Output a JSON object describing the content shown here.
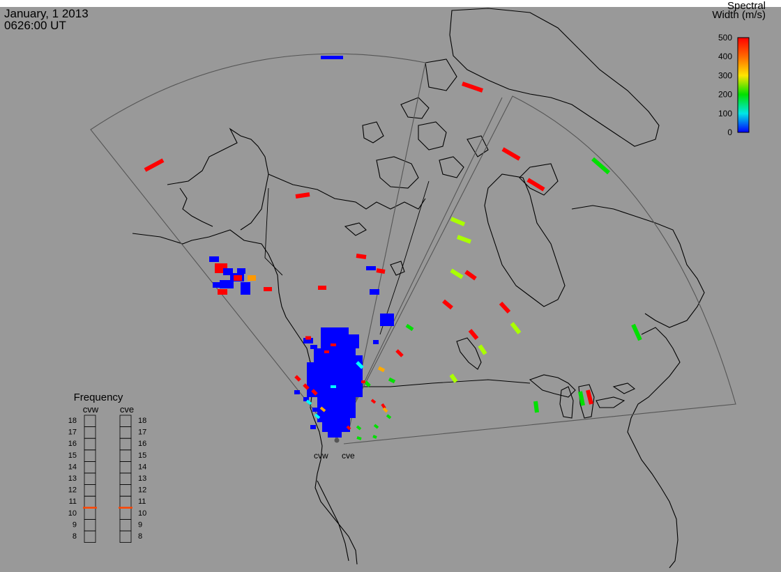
{
  "header": {
    "date": "January, 1 2013",
    "time": "0626:00 UT"
  },
  "colorbar": {
    "title_line1": "Spectral",
    "title_line2": "Width (m/s)",
    "ticks": [
      "500",
      "400",
      "300",
      "200",
      "100",
      "0"
    ],
    "colors": [
      "#ff0000",
      "#ff8000",
      "#ffff00",
      "#00e000",
      "#00ffff",
      "#0000ff"
    ]
  },
  "frequency_panel": {
    "title": "Frequency",
    "left_label": "cvw",
    "right_label": "cve",
    "scale": [
      "18",
      "17",
      "16",
      "15",
      "14",
      "13",
      "12",
      "11",
      "10",
      "9",
      "8"
    ],
    "cvw_frequency_mhz": 10.5,
    "cve_frequency_mhz": 10.5,
    "marker_color": "#ff4400"
  },
  "radars": {
    "site_west_label": "cvw",
    "site_east_label": "cve"
  },
  "colors": {
    "background": "#999999",
    "coast": "#000000",
    "fov": "#555555",
    "low_width": "#0000ff",
    "high_width": "#ff0000"
  }
}
